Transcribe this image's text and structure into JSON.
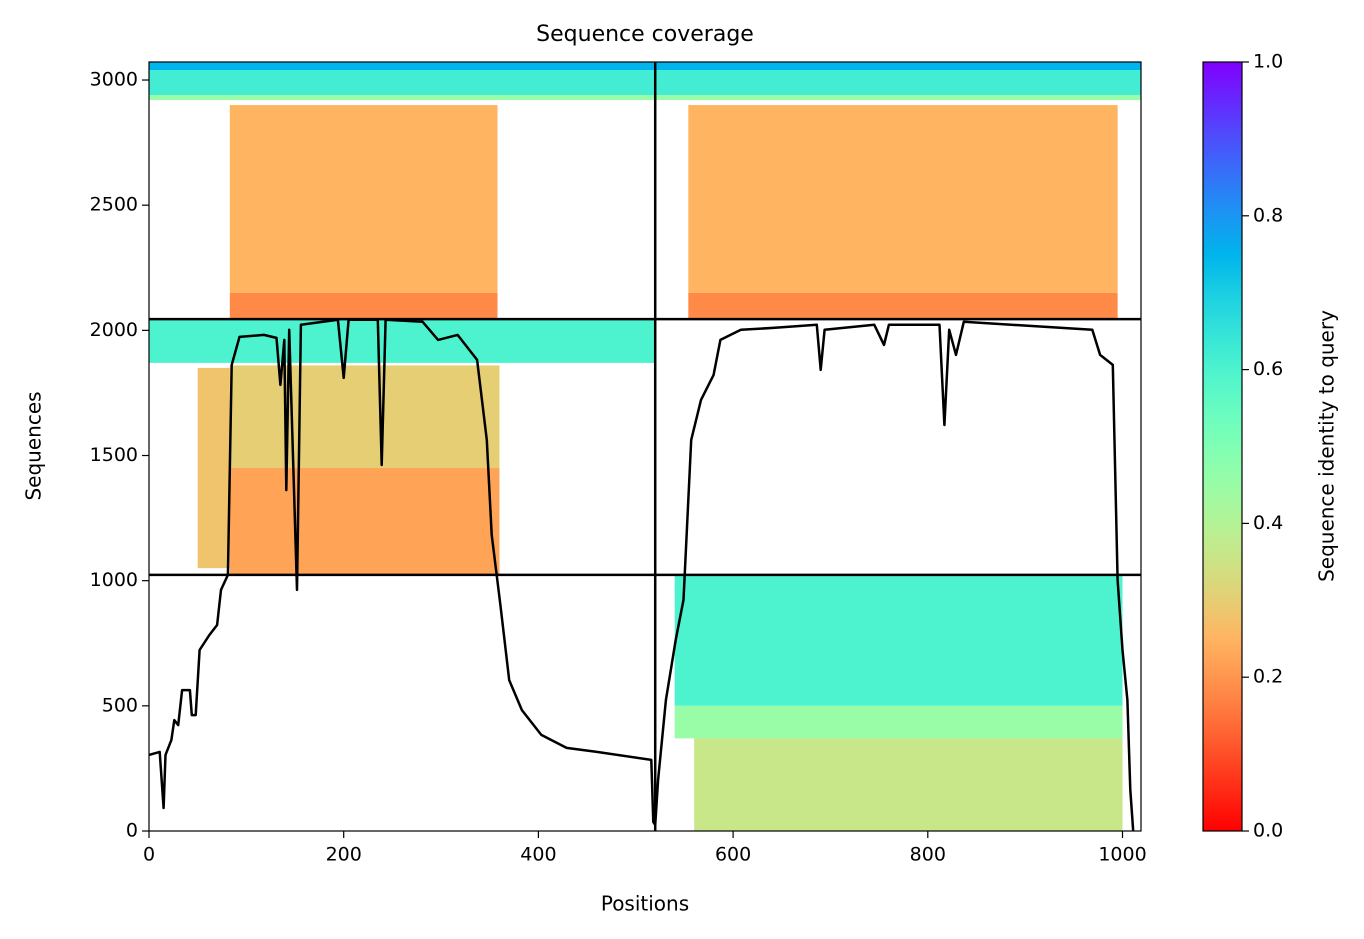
{
  "chart_data": {
    "type": "msa_coverage",
    "title": "Sequence coverage",
    "x_label": "Positions",
    "y_label": "Sequences",
    "xlim": [
      0,
      1019
    ],
    "ylim": [
      0,
      3072
    ],
    "xticks": [
      0,
      200,
      400,
      600,
      800,
      1000
    ],
    "yticks": [
      0,
      500,
      1000,
      1500,
      2000,
      2500,
      3000
    ],
    "dividers": {
      "x": [
        520
      ],
      "y": [
        1023,
        2045
      ]
    },
    "blocks": [
      {
        "x": [
          0,
          520
        ],
        "y": [
          3040,
          3072
        ],
        "identity": 0.75
      },
      {
        "x": [
          0,
          520
        ],
        "y": [
          2940,
          3040
        ],
        "identity": 0.62
      },
      {
        "x": [
          0,
          520
        ],
        "y": [
          2920,
          2940
        ],
        "identity": 0.45
      },
      {
        "x": [
          83,
          358
        ],
        "y": [
          2150,
          2900
        ],
        "identity": 0.25
      },
      {
        "x": [
          83,
          358
        ],
        "y": [
          2045,
          2150
        ],
        "identity": 0.18
      },
      {
        "x": [
          520,
          1019
        ],
        "y": [
          3040,
          3072
        ],
        "identity": 0.75
      },
      {
        "x": [
          520,
          1019
        ],
        "y": [
          2940,
          3040
        ],
        "identity": 0.62
      },
      {
        "x": [
          520,
          1019
        ],
        "y": [
          2920,
          2940
        ],
        "identity": 0.45
      },
      {
        "x": [
          554,
          995
        ],
        "y": [
          2150,
          2900
        ],
        "identity": 0.25
      },
      {
        "x": [
          554,
          995
        ],
        "y": [
          2045,
          2150
        ],
        "identity": 0.18
      },
      {
        "x": [
          0,
          520
        ],
        "y": [
          1870,
          2045
        ],
        "identity": 0.6
      },
      {
        "x": [
          50,
          83
        ],
        "y": [
          1050,
          1850
        ],
        "identity": 0.28
      },
      {
        "x": [
          83,
          360
        ],
        "y": [
          1450,
          1860
        ],
        "identity": 0.3
      },
      {
        "x": [
          83,
          360
        ],
        "y": [
          1023,
          1450
        ],
        "identity": 0.22
      },
      {
        "x": [
          540,
          1000
        ],
        "y": [
          500,
          1023
        ],
        "identity": 0.6
      },
      {
        "x": [
          540,
          1000
        ],
        "y": [
          370,
          500
        ],
        "identity": 0.45
      },
      {
        "x": [
          560,
          1000
        ],
        "y": [
          0,
          370
        ],
        "identity": 0.36
      }
    ],
    "coverage": {
      "x": [
        0,
        11,
        15,
        17,
        23,
        26,
        30,
        34,
        42,
        44,
        48,
        52,
        62,
        70,
        74,
        81,
        85,
        93,
        118,
        131,
        135,
        139,
        141,
        144,
        152,
        156,
        194,
        200,
        205,
        235,
        239,
        243,
        281,
        297,
        317,
        337,
        347,
        352,
        361,
        370,
        383,
        403,
        429,
        460,
        516,
        518,
        520,
        523,
        531,
        541,
        549,
        557,
        567,
        580,
        587,
        608,
        643,
        686,
        690,
        694,
        745,
        755,
        760,
        812,
        817,
        822,
        829,
        837,
        969,
        977,
        990,
        995,
        1000,
        1005,
        1008,
        1011
      ],
      "y": [
        304,
        316,
        92,
        304,
        364,
        443,
        423,
        563,
        563,
        463,
        463,
        723,
        783,
        823,
        963,
        1023,
        1862,
        1974,
        1982,
        1970,
        1782,
        1962,
        1362,
        2002,
        963,
        2022,
        2042,
        1810,
        2042,
        2042,
        1462,
        2042,
        2034,
        1962,
        1982,
        1882,
        1562,
        1183,
        903,
        603,
        483,
        384,
        332,
        316,
        284,
        36,
        24,
        204,
        523,
        763,
        923,
        1562,
        1722,
        1822,
        1962,
        2002,
        2010,
        2022,
        1842,
        2002,
        2022,
        1942,
        2022,
        2022,
        1622,
        2002,
        1902,
        2034,
        2002,
        1902,
        1862,
        1003,
        723,
        523,
        164,
        0
      ],
      "color": "#000000"
    },
    "colorbar": {
      "label": "Sequence identity to query",
      "lim": [
        0,
        1
      ],
      "ticks": [
        {
          "value": 0,
          "label": "0.0"
        },
        0.2,
        0.4,
        0.6,
        0.8,
        {
          "value": 1,
          "label": "1.0"
        }
      ]
    }
  }
}
